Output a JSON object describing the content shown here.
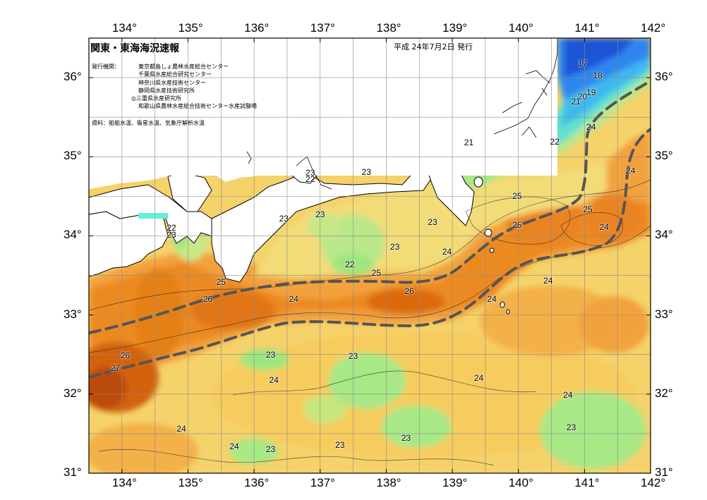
{
  "header": {
    "title": "関東・東海海況速報",
    "date": "平成 24年7月2日 発行",
    "issuer_label": "発行機関：",
    "issuers": [
      "東京都島しょ農林水産総合センター",
      "千葉県水産総合研究センター",
      "神奈川県水産技術センター",
      "静岡県水産技術研究所",
      "◎三重県水産研究所",
      "和歌山県農林水産総合技術センター水産試験場"
    ],
    "source": "資料：船舶水温、衛星水温、気象庁解析水温"
  },
  "axes": {
    "lon_labels": [
      "134°",
      "135°",
      "136°",
      "137°",
      "138°",
      "139°",
      "140°",
      "141°",
      "142°"
    ],
    "lat_labels": [
      "36°",
      "35°",
      "34°",
      "33°",
      "32°",
      "31°"
    ],
    "lon_range": [
      133.5,
      142
    ],
    "lat_range": [
      31,
      36.5
    ]
  },
  "isotherm_labels": [
    {
      "text": "17",
      "lon": 140.97,
      "lat": 36.18
    },
    {
      "text": "18",
      "lon": 141.2,
      "lat": 36.03
    },
    {
      "text": "19",
      "lon": 141.1,
      "lat": 35.81
    },
    {
      "text": "20",
      "lon": 140.97,
      "lat": 35.76
    },
    {
      "text": "21",
      "lon": 140.87,
      "lat": 35.7
    },
    {
      "text": "21",
      "lon": 139.25,
      "lat": 35.18
    },
    {
      "text": "22",
      "lon": 140.55,
      "lat": 35.19
    },
    {
      "text": "24",
      "lon": 141.1,
      "lat": 35.38
    },
    {
      "text": "24",
      "lon": 141.7,
      "lat": 34.82
    },
    {
      "text": "23",
      "lon": 136.85,
      "lat": 34.8
    },
    {
      "text": "22",
      "lon": 136.85,
      "lat": 34.72
    },
    {
      "text": "23",
      "lon": 137.7,
      "lat": 34.81
    },
    {
      "text": "23",
      "lon": 136.45,
      "lat": 34.22
    },
    {
      "text": "23",
      "lon": 137.0,
      "lat": 34.27
    },
    {
      "text": "23",
      "lon": 138.7,
      "lat": 34.17
    },
    {
      "text": "25",
      "lon": 139.98,
      "lat": 34.5
    },
    {
      "text": "25",
      "lon": 139.98,
      "lat": 34.14
    },
    {
      "text": "25",
      "lon": 141.05,
      "lat": 34.33
    },
    {
      "text": "24",
      "lon": 141.3,
      "lat": 34.11
    },
    {
      "text": "22",
      "lon": 134.75,
      "lat": 34.1
    },
    {
      "text": "23",
      "lon": 134.75,
      "lat": 34.01
    },
    {
      "text": "23",
      "lon": 138.13,
      "lat": 33.86
    },
    {
      "text": "24",
      "lon": 138.92,
      "lat": 33.8
    },
    {
      "text": "22",
      "lon": 137.45,
      "lat": 33.64
    },
    {
      "text": "25",
      "lon": 137.85,
      "lat": 33.53
    },
    {
      "text": "25",
      "lon": 135.5,
      "lat": 33.42
    },
    {
      "text": "26",
      "lon": 138.35,
      "lat": 33.3
    },
    {
      "text": "24",
      "lon": 140.45,
      "lat": 33.43
    },
    {
      "text": "26",
      "lon": 135.3,
      "lat": 33.2
    },
    {
      "text": "24",
      "lon": 136.6,
      "lat": 33.2
    },
    {
      "text": "24",
      "lon": 139.6,
      "lat": 33.2
    },
    {
      "text": "26",
      "lon": 134.05,
      "lat": 32.49
    },
    {
      "text": "27",
      "lon": 133.9,
      "lat": 32.33
    },
    {
      "text": "23",
      "lon": 136.25,
      "lat": 32.5
    },
    {
      "text": "23",
      "lon": 137.5,
      "lat": 32.48
    },
    {
      "text": "24",
      "lon": 136.3,
      "lat": 32.18
    },
    {
      "text": "24",
      "lon": 139.4,
      "lat": 32.2
    },
    {
      "text": "24",
      "lon": 140.75,
      "lat": 31.99
    },
    {
      "text": "23",
      "lon": 140.8,
      "lat": 31.58
    },
    {
      "text": "24",
      "lon": 134.9,
      "lat": 31.56
    },
    {
      "text": "24",
      "lon": 135.7,
      "lat": 31.34
    },
    {
      "text": "23",
      "lon": 136.25,
      "lat": 31.3
    },
    {
      "text": "23",
      "lon": 137.3,
      "lat": 31.36
    },
    {
      "text": "23",
      "lon": 138.3,
      "lat": 31.45
    }
  ],
  "colors": {
    "warm27": "#c2500e",
    "warm26": "#e06e0c",
    "warm25": "#ef9232",
    "warm24": "#f5b546",
    "mid24": "#f7c95c",
    "mid23": "#f5dc7a",
    "cool23": "#e8e47c",
    "cool22": "#b8e88a",
    "cool22b": "#8eea76",
    "cool21": "#62f0d8",
    "cold20": "#4fd6ee",
    "cold19": "#3fb4ef",
    "cold18": "#2f86ee",
    "cold17": "#1d55d6",
    "land": "#ffffff",
    "grid": "#8a8a8a",
    "kuroshio_axis": "#555555"
  }
}
